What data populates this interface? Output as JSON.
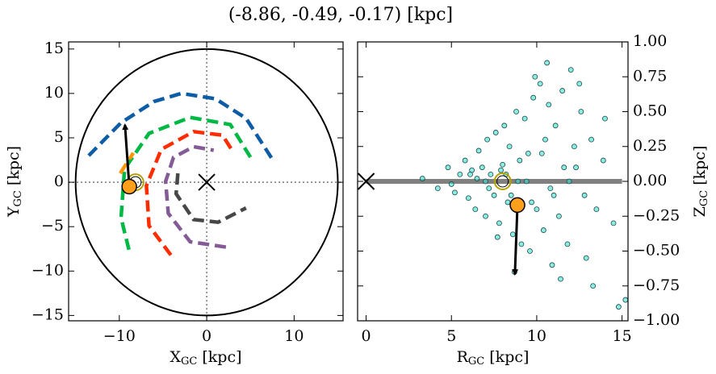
{
  "title": "(-8.86, -0.49, -0.17) [kpc]",
  "chart_data": [
    {
      "type": "line",
      "xlabel": {
        "main": "X",
        "sub": "GC",
        "unit": " [kpc]"
      },
      "ylabel": {
        "main": "Y",
        "sub": "GC",
        "unit": " [kpc]"
      },
      "yaxis": "left",
      "xlim": [
        -15.8,
        15.6
      ],
      "ylim": [
        -15.6,
        15.8
      ],
      "xticks": [
        {
          "value": -10,
          "label": "−10"
        },
        0,
        10
      ],
      "yticks": [
        {
          "value": -15,
          "label": "−15"
        },
        {
          "value": -10,
          "label": "−10"
        },
        {
          "value": -5,
          "label": "−5"
        },
        0,
        5,
        10,
        15
      ],
      "series": [
        {
          "color": "#0c5da5",
          "x": [
            -13.5,
            -9.8,
            -6.0,
            -2.9,
            1.0,
            4.5,
            7.5
          ],
          "y": [
            3.0,
            6.7,
            9.1,
            10.0,
            9.4,
            7.2,
            2.6
          ]
        },
        {
          "color": "#00b945",
          "x": [
            -8.9,
            -9.8,
            -9.4,
            -6.6,
            -1.9,
            2.7,
            5.2
          ],
          "y": [
            -7.6,
            -4.0,
            1.5,
            5.5,
            7.3,
            6.5,
            2.5
          ]
        },
        {
          "color": "#ff2c00",
          "x": [
            -4.1,
            -6.6,
            -6.9,
            -5.2,
            -1.5,
            1.8,
            3.1
          ],
          "y": [
            -8.2,
            -4.9,
            -0.4,
            3.7,
            5.7,
            5.3,
            3.3
          ]
        },
        {
          "color": "#845b97",
          "x": [
            2.2,
            -1.9,
            -4.4,
            -4.7,
            -3.8,
            -1.5,
            0.8
          ],
          "y": [
            -7.3,
            -6.7,
            -3.5,
            0.1,
            2.8,
            4.0,
            3.6
          ]
        },
        {
          "color": "#474747",
          "x": [
            -3.3,
            -3.5,
            -1.5,
            1.3,
            4.5
          ],
          "y": [
            1.0,
            -1.3,
            -4.2,
            -4.5,
            -2.9
          ]
        },
        {
          "color": "#ff9500",
          "x": [
            -9.9,
            -8.4
          ],
          "y": [
            1.0,
            3.3
          ]
        }
      ],
      "circle_radius": 15,
      "crosshair": [
        0,
        0
      ],
      "origin_marker": [
        0,
        0
      ],
      "sun": [
        -8.15,
        0
      ],
      "star": [
        -8.86,
        -0.49
      ],
      "arrow": [
        [
          -8.86,
          -0.49
        ],
        [
          -9.35,
          6.45
        ]
      ]
    },
    {
      "type": "scatter",
      "xlabel": {
        "main": "R",
        "sub": "GC",
        "unit": " [kpc]"
      },
      "ylabel": {
        "main": "Z",
        "sub": "GC",
        "unit": " [kpc]"
      },
      "yaxis": "right",
      "xlim": [
        -0.5,
        15.35
      ],
      "ylim": [
        -1,
        1
      ],
      "xticks": [
        0,
        5,
        10,
        15
      ],
      "yticks": [
        {
          "value": -1,
          "label": "−1.00"
        },
        {
          "value": -0.75,
          "label": "−0.75"
        },
        {
          "value": -0.5,
          "label": "−0.50"
        },
        {
          "value": -0.25,
          "label": "−0.25"
        },
        {
          "value": 0,
          "label": "0.00"
        },
        {
          "value": 0.25,
          "label": "0.25"
        },
        {
          "value": 0.5,
          "label": "0.50"
        },
        {
          "value": 0.75,
          "label": "0.75"
        },
        {
          "value": 1,
          "label": "1.00"
        }
      ],
      "point_color": "#40e0d0",
      "x": [
        3.3,
        4.2,
        4.8,
        5.2,
        5.5,
        5.8,
        6.0,
        6.2,
        6.4,
        6.6,
        6.8,
        7.0,
        7.1,
        7.3,
        7.5,
        7.6,
        7.8,
        8.0,
        8.1,
        8.3,
        8.4,
        8.6,
        8.8,
        8.9,
        9.1,
        9.3,
        9.5,
        9.6,
        9.8,
        10.0,
        10.2,
        10.4,
        10.5,
        10.7,
        10.9,
        11.1,
        11.3,
        11.5,
        11.8,
        12.0,
        12.3,
        12.6,
        12.9,
        13.2,
        13.5,
        14.0,
        14.5,
        6.5,
        7.2,
        7.9,
        8.5,
        9.0,
        9.7,
        10.3,
        11.0,
        11.6,
        12.2,
        7.0,
        8.2,
        9.4,
        10.8,
        11.9,
        12.8,
        5.0,
        6.1,
        13.9,
        14.8,
        15.2,
        9.9,
        10.6,
        11.4,
        8.7,
        7.7,
        12.5,
        13.3
      ],
      "y": [
        0.02,
        -0.05,
        0.1,
        -0.08,
        0.05,
        0.15,
        -0.12,
        0.08,
        -0.2,
        0.22,
        0.1,
        -0.25,
        0.3,
        0.05,
        -0.1,
        0.35,
        -0.3,
        0.12,
        0.4,
        -0.15,
        0.25,
        -0.38,
        0.5,
        0.0,
        -0.45,
        0.45,
        0.2,
        -0.5,
        0.6,
        -0.2,
        0.7,
        -0.35,
        0.3,
        0.55,
        -0.6,
        0.4,
        -0.25,
        0.65,
        -0.45,
        0.8,
        0.1,
        0.5,
        -0.55,
        0.3,
        -0.2,
        0.45,
        -0.3,
        0.02,
        -0.05,
        0.08,
        -0.1,
        0.15,
        -0.15,
        0.2,
        -0.1,
        0.1,
        0.25,
        0.0,
        0.05,
        0.0,
        -0.05,
        0.0,
        -0.1,
        -0.02,
        0.05,
        0.15,
        -0.9,
        -0.85,
        0.75,
        0.85,
        -0.7,
        -0.65,
        -0.4,
        0.7,
        -0.75
      ],
      "zero_line": [
        0,
        15
      ],
      "origin_marker": [
        0,
        0
      ],
      "sun": [
        8.0,
        0.0
      ],
      "star": [
        8.87,
        -0.17
      ],
      "arrow": [
        [
          8.87,
          -0.17
        ],
        [
          8.72,
          -0.665
        ]
      ]
    }
  ]
}
